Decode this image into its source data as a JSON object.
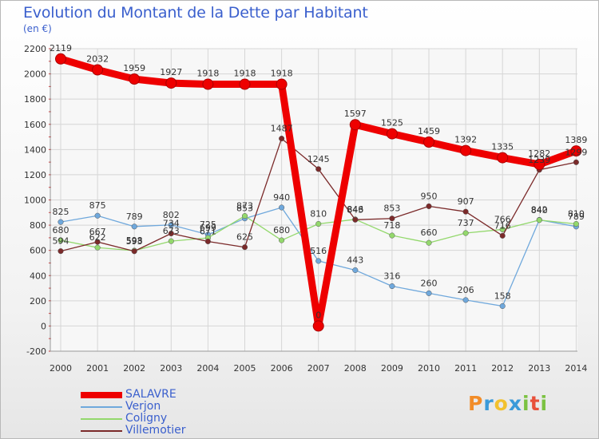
{
  "chart_data": {
    "type": "line",
    "title": "Evolution du Montant de la Dette par Habitant",
    "subtitle": "(en €)",
    "x": [
      "2000",
      "2001",
      "2002",
      "2003",
      "2004",
      "2005",
      "2006",
      "2007",
      "2008",
      "2009",
      "2010",
      "2011",
      "2012",
      "2013",
      "2014"
    ],
    "ylim": [
      -200,
      2200
    ],
    "yticks": [
      -200,
      0,
      200,
      400,
      600,
      800,
      1000,
      1200,
      1400,
      1600,
      1800,
      2000,
      2200
    ],
    "grid": true,
    "legend_position": "bottom-left",
    "series": [
      {
        "name": "SALAVRE",
        "color": "#ee0000",
        "values": [
          2119,
          2032,
          1959,
          1927,
          1918,
          1918,
          1918,
          0,
          1597,
          1525,
          1459,
          1392,
          1335,
          1282,
          1389
        ],
        "labels": [
          "2119",
          "2032",
          "1959",
          "1927",
          "1918",
          "1918",
          "1918",
          "0",
          "1597",
          "1525",
          "1459",
          "1392",
          "1335",
          "1282",
          "1389"
        ]
      },
      {
        "name": "Verjon",
        "color": "#6fa8dc",
        "values": [
          825,
          875,
          789,
          802,
          725,
          853,
          940,
          516,
          443,
          316,
          260,
          206,
          158,
          842,
          789
        ],
        "labels": [
          "825",
          "875",
          "789",
          "802",
          "725",
          "853",
          "940",
          "516",
          "443",
          "316",
          "260",
          "206",
          "158",
          "842",
          "789"
        ]
      },
      {
        "name": "Coligny",
        "color": "#93d86c",
        "values": [
          680,
          622,
          598,
          673,
          699,
          873,
          680,
          810,
          846,
          718,
          660,
          737,
          766,
          840,
          810
        ],
        "labels": [
          "680",
          "622",
          "598",
          "673",
          "699",
          "873",
          "680",
          "810",
          "846",
          "718",
          "660",
          "737",
          "766",
          "840",
          "810"
        ]
      },
      {
        "name": "Villemotier",
        "color": "#7b2a2a",
        "values": [
          594,
          667,
          593,
          734,
          671,
          625,
          1487,
          1245,
          843,
          853,
          950,
          907,
          716,
          1239,
          1299
        ],
        "labels": [
          "594",
          "667",
          "593",
          "734",
          "671",
          "625",
          "1487",
          "1245",
          "843",
          "853",
          "950",
          "907",
          "716",
          "1239",
          "1299"
        ]
      }
    ]
  },
  "logo": {
    "letters": [
      "P",
      "r",
      "o",
      "x",
      "i",
      "t",
      "i"
    ],
    "colors": [
      "#f28c28",
      "#3a9ad9",
      "#f2c12e",
      "#3a9ad9",
      "#7cc242",
      "#e8503a",
      "#7cc242"
    ]
  }
}
